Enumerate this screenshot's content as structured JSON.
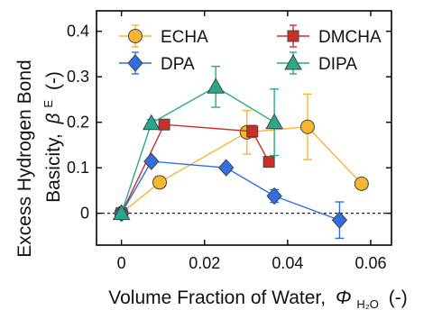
{
  "chart_data": {
    "type": "scatter",
    "xlabel": "Volume Fraction of Water,",
    "xlabel_symbol": "Φ",
    "xlabel_sub": "H₂O",
    "xlabel_unit": "(-)",
    "ylabel_line1": "Excess Hydrogen Bond",
    "ylabel_line2": "Basicity,",
    "ylabel_symbol": "β",
    "ylabel_sup": "E",
    "ylabel_unit": "(-)",
    "xlim": [
      -0.006,
      0.065
    ],
    "ylim": [
      -0.07,
      0.445
    ],
    "xticks": [
      0,
      0.02,
      0.04,
      0.06
    ],
    "xtick_labels": [
      "0",
      "0.02",
      "0.04",
      "0.06"
    ],
    "yticks": [
      0,
      0.1,
      0.2,
      0.3,
      0.4
    ],
    "ytick_labels": [
      "0",
      "0.1",
      "0.2",
      "0.3",
      "0.4"
    ],
    "reference_line": 0,
    "grid": false,
    "legend_position": "top",
    "series": [
      {
        "name": "ECHA",
        "marker": "circle",
        "color": "#f5b731",
        "line_color": "#f5b731",
        "x": [
          0,
          0.0092,
          0.0302,
          0.0448,
          0.0578
        ],
        "y": [
          0,
          0.068,
          0.178,
          0.19,
          0.065
        ],
        "err": [
          0,
          0.013,
          0.048,
          0.072,
          0.01
        ]
      },
      {
        "name": "DMCHA",
        "marker": "square",
        "color": "#c8302a",
        "line_color": "#c8302a",
        "x": [
          0,
          0.0103,
          0.0315,
          0.0355
        ],
        "y": [
          0,
          0.195,
          0.18,
          0.113
        ],
        "err": [
          0,
          0.008,
          0.013,
          0.01
        ]
      },
      {
        "name": "DPA",
        "marker": "diamond",
        "color": "#2f6fe0",
        "line_color": "#2f6fe0",
        "x": [
          0,
          0.0072,
          0.0252,
          0.0368,
          0.0525
        ],
        "y": [
          0,
          0.114,
          0.1,
          0.038,
          -0.015
        ],
        "err": [
          0,
          0.008,
          0.008,
          0.014,
          0.04
        ]
      },
      {
        "name": "DIPA",
        "marker": "triangle",
        "color": "#2aa88a",
        "line_color": "#2aa88a",
        "x": [
          0,
          0.0072,
          0.0227,
          0.0368
        ],
        "y": [
          0,
          0.198,
          0.278,
          0.2
        ],
        "err": [
          0,
          0.008,
          0.045,
          0.073
        ]
      }
    ]
  }
}
